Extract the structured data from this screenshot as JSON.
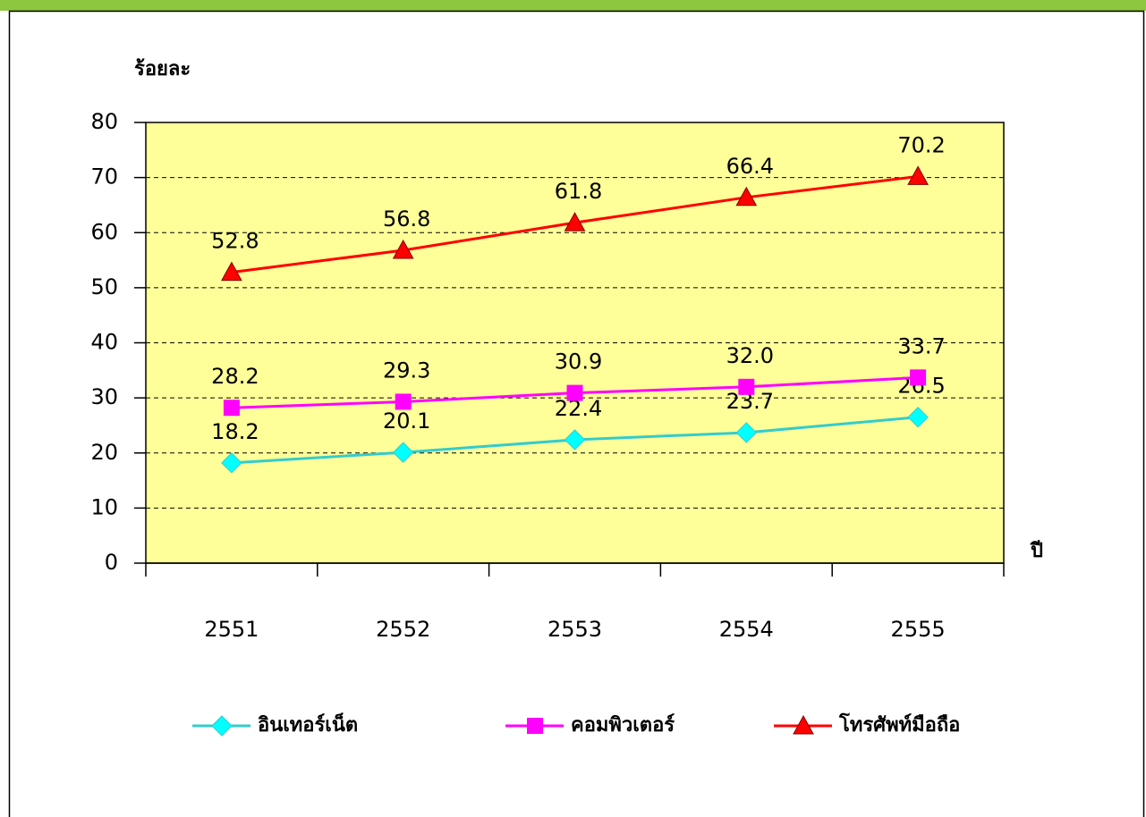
{
  "chart_data": {
    "type": "line",
    "y_label": "ร้อยละ",
    "x_label": "ปี",
    "categories": [
      "2551",
      "2552",
      "2553",
      "2554",
      "2555"
    ],
    "series": [
      {
        "name": "อินเทอร์เน็ต",
        "color": "#33CCCC",
        "marker": "diamond",
        "values": [
          18.2,
          20.1,
          22.4,
          23.7,
          26.5
        ]
      },
      {
        "name": "คอมพิวเตอร์",
        "color": "#FF00FF",
        "marker": "square",
        "values": [
          28.2,
          29.3,
          30.9,
          32,
          33.7
        ],
        "value_labels": [
          "28.2",
          "29.3",
          "30.9",
          "32.0",
          "33.7"
        ]
      },
      {
        "name": "โทรศัพท์มือถือ",
        "color": "#FF0000",
        "marker": "triangle",
        "values": [
          52.8,
          56.8,
          61.8,
          66.4,
          70.2
        ]
      }
    ],
    "ylim": [
      0,
      80
    ],
    "yticks": [
      0,
      10,
      20,
      30,
      40,
      50,
      60,
      70,
      80
    ],
    "grid": true,
    "plot_background": "#FFFF99"
  }
}
